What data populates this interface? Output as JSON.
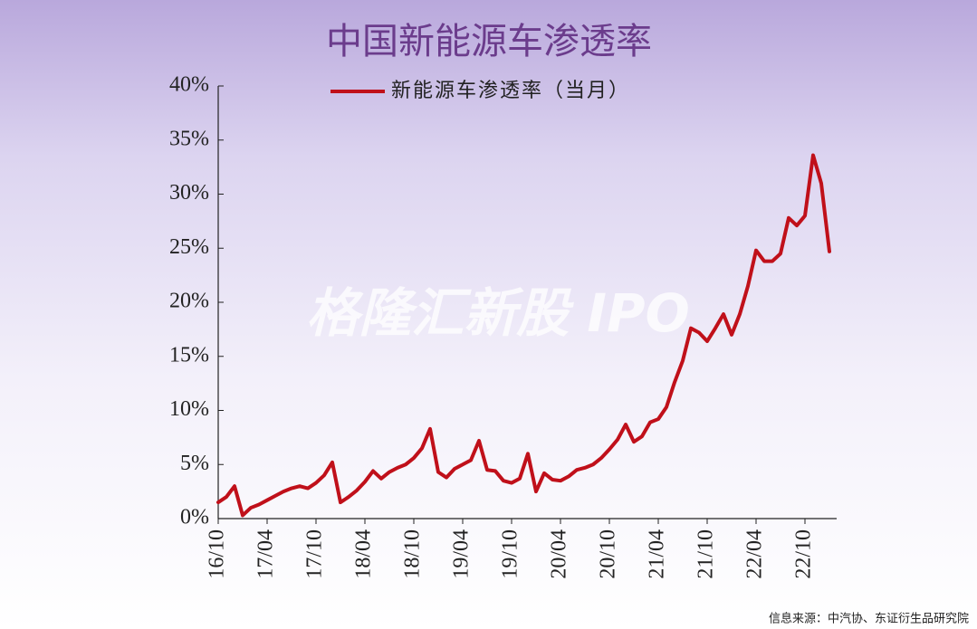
{
  "chart_data": {
    "type": "line",
    "title": "中国新能源车渗透率",
    "watermark": "格隆汇新股 IPO",
    "source": "信息来源：中汽协、东证衍生品研究院",
    "categories": [
      "16/10",
      null,
      null,
      null,
      null,
      null,
      "17/04",
      null,
      null,
      null,
      null,
      null,
      "17/10",
      null,
      null,
      null,
      null,
      null,
      "18/04",
      null,
      null,
      null,
      null,
      null,
      "18/10",
      null,
      null,
      null,
      null,
      null,
      "19/04",
      null,
      null,
      null,
      null,
      null,
      "19/10",
      null,
      null,
      null,
      null,
      null,
      "20/04",
      null,
      null,
      null,
      null,
      null,
      "20/10",
      null,
      null,
      null,
      null,
      null,
      "21/04",
      null,
      null,
      null,
      null,
      null,
      "21/10",
      null,
      null,
      null,
      null,
      null,
      "22/04",
      null,
      null,
      null,
      null,
      null,
      "22/10",
      null,
      null,
      null
    ],
    "series": [
      {
        "name": "新能源车渗透率（当月）",
        "color": "#c0101a",
        "values": [
          1.5,
          2.0,
          3.0,
          0.3,
          1.0,
          1.3,
          1.7,
          2.1,
          2.5,
          2.8,
          3.0,
          2.8,
          3.3,
          4.0,
          5.2,
          1.5,
          2.0,
          2.6,
          3.4,
          4.4,
          3.7,
          4.3,
          4.7,
          5.0,
          5.6,
          6.5,
          8.3,
          4.3,
          3.8,
          4.6,
          5.0,
          5.4,
          7.2,
          4.5,
          4.4,
          3.5,
          3.3,
          3.7,
          6.0,
          2.5,
          4.2,
          3.6,
          3.5,
          3.9,
          4.5,
          4.7,
          5.0,
          5.6,
          6.4,
          7.3,
          8.7,
          7.1,
          7.6,
          8.9,
          9.2,
          10.3,
          12.6,
          14.6,
          17.6,
          17.2,
          16.4,
          17.6,
          18.9,
          17.0,
          18.9,
          21.5,
          24.8,
          23.8,
          23.8,
          24.5,
          27.8,
          27.1,
          28.0,
          33.6,
          31.0,
          24.7
        ]
      }
    ],
    "ylim": [
      0,
      40
    ],
    "yticks": [
      {
        "value": 0,
        "label": "0%"
      },
      {
        "value": 5,
        "label": "5%"
      },
      {
        "value": 10,
        "label": "10%"
      },
      {
        "value": 15,
        "label": "15%"
      },
      {
        "value": 20,
        "label": "20%"
      },
      {
        "value": 25,
        "label": "25%"
      },
      {
        "value": 30,
        "label": "30%"
      },
      {
        "value": 35,
        "label": "35%"
      },
      {
        "value": 40,
        "label": "40%"
      }
    ],
    "legend": "top"
  }
}
